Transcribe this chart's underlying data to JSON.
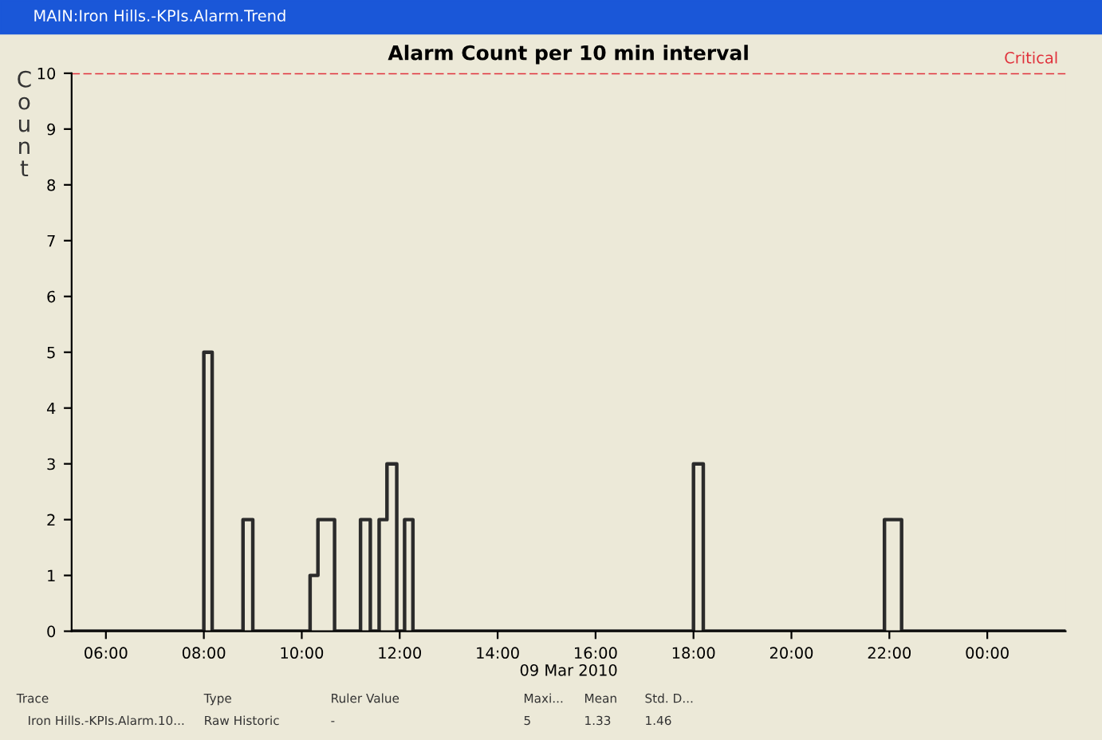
{
  "chart_data": {
    "type": "step",
    "title": "Alarm Count per 10 min interval",
    "xlabel": "09 Mar 2010",
    "ylabel": "Count",
    "x": [
      5.3,
      8.0,
      8.17,
      8.8,
      9.0,
      10.17,
      10.33,
      10.67,
      11.2,
      11.4,
      11.58,
      11.74,
      11.94,
      12.1,
      12.27,
      18.0,
      18.2,
      21.9,
      22.25,
      25.6
    ],
    "series": [
      {
        "color": "#2b2b2b",
        "values": [
          0,
          5,
          0,
          2,
          0,
          1,
          2,
          0,
          2,
          0,
          2,
          3,
          0,
          2,
          0,
          3,
          0,
          2,
          0,
          0
        ]
      }
    ],
    "xlim": [
      5.3,
      25.6
    ],
    "xticks": [
      {
        "value": 6,
        "label": "06:00"
      },
      {
        "value": 8,
        "label": "08:00"
      },
      {
        "value": 10,
        "label": "10:00"
      },
      {
        "value": 12,
        "label": "12:00"
      },
      {
        "value": 14,
        "label": "14:00"
      },
      {
        "value": 16,
        "label": "16:00"
      },
      {
        "value": 18,
        "label": "18:00"
      },
      {
        "value": 20,
        "label": "20:00"
      },
      {
        "value": 22,
        "label": "22:00"
      },
      {
        "value": 24,
        "label": "00:00"
      }
    ],
    "ylim": [
      0,
      10
    ],
    "yticks": [
      0,
      1,
      2,
      3,
      4,
      5,
      6,
      7,
      8,
      9,
      10
    ],
    "ref_lines": [
      {
        "axis": "y",
        "value": 10,
        "label": "Critical",
        "color": "#e0313b",
        "line_style": "dashed"
      }
    ],
    "grid": false,
    "legend": false,
    "annotations": [
      "MAIN:Iron Hills.-KPIs.Alarm.Trend",
      "Trace",
      "Type",
      "Ruler Value",
      "Maxi...",
      "Mean",
      "Std. D...",
      "Iron Hills.-KPIs.Alarm.10...",
      "Raw Historic",
      "-",
      "5",
      "1.33",
      "1.46"
    ]
  }
}
